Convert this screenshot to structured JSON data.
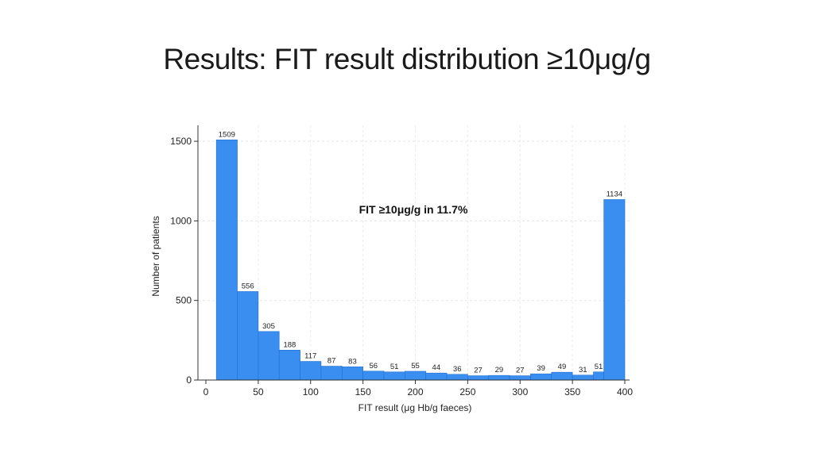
{
  "slide": {
    "title": "Results: FIT result distribution ≥10μg/g"
  },
  "chart_data": {
    "type": "bar",
    "title": "",
    "xlabel": "FIT result (μg Hb/g faeces)",
    "ylabel": "Number of patients",
    "annotation": "FIT ≥10μg/g in 11.7%",
    "bar_color": "#3a8ef0",
    "xlim": [
      0,
      400
    ],
    "ylim": [
      0,
      1600
    ],
    "x_ticks": [
      0,
      50,
      100,
      150,
      200,
      250,
      300,
      350,
      400
    ],
    "y_ticks": [
      0,
      500,
      1000,
      1500
    ],
    "grid": true,
    "bins": [
      {
        "x0": 10,
        "x1": 30,
        "value": 1509
      },
      {
        "x0": 30,
        "x1": 50,
        "value": 556
      },
      {
        "x0": 50,
        "x1": 70,
        "value": 305
      },
      {
        "x0": 70,
        "x1": 90,
        "value": 188
      },
      {
        "x0": 90,
        "x1": 110,
        "value": 117
      },
      {
        "x0": 110,
        "x1": 130,
        "value": 87
      },
      {
        "x0": 130,
        "x1": 150,
        "value": 83
      },
      {
        "x0": 150,
        "x1": 170,
        "value": 56
      },
      {
        "x0": 170,
        "x1": 190,
        "value": 51
      },
      {
        "x0": 190,
        "x1": 210,
        "value": 55
      },
      {
        "x0": 210,
        "x1": 230,
        "value": 44
      },
      {
        "x0": 230,
        "x1": 250,
        "value": 36
      },
      {
        "x0": 250,
        "x1": 270,
        "value": 27
      },
      {
        "x0": 270,
        "x1": 290,
        "value": 29
      },
      {
        "x0": 290,
        "x1": 310,
        "value": 27
      },
      {
        "x0": 310,
        "x1": 330,
        "value": 39
      },
      {
        "x0": 330,
        "x1": 350,
        "value": 49
      },
      {
        "x0": 350,
        "x1": 370,
        "value": 31
      },
      {
        "x0": 370,
        "x1": 380,
        "value": 51
      },
      {
        "x0": 380,
        "x1": 400,
        "value": 1134
      }
    ]
  }
}
